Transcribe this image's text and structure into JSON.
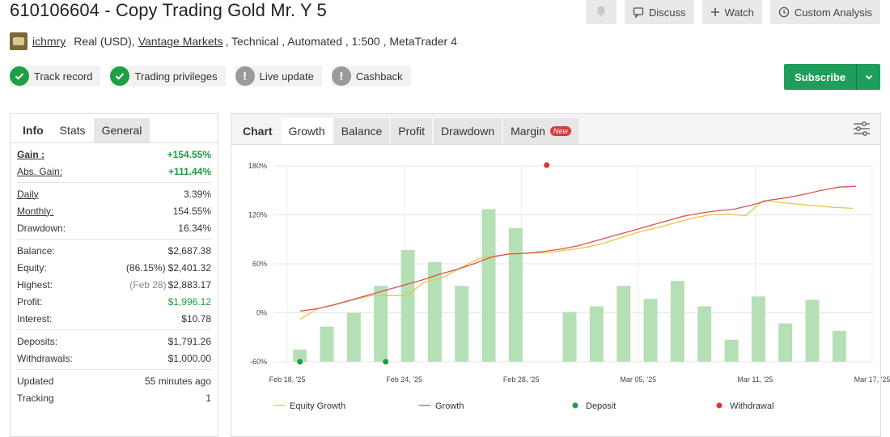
{
  "header": {
    "title": "610106604 - Copy Trading Gold Mr. Y 5",
    "discuss": "Discuss",
    "watch": "Watch",
    "custom_analysis": "Custom Analysis"
  },
  "account": {
    "user": "ichmry",
    "currency": "Real (USD),",
    "broker": "Vantage Markets",
    "details": ", Technical , Automated , 1:500 , MetaTrader 4"
  },
  "badges": {
    "track_record": "Track record",
    "trading_privileges": "Trading privileges",
    "live_update": "Live update",
    "cashback": "Cashback"
  },
  "subscribe": {
    "label": "Subscribe"
  },
  "left_tabs": {
    "info": "Info",
    "stats": "Stats",
    "general": "General"
  },
  "stats": {
    "gain_label": "Gain :",
    "gain": "+154.55%",
    "abs_gain_label": "Abs. Gain:",
    "abs_gain": "+111.44%",
    "daily_label": "Daily",
    "daily": "3.39%",
    "monthly_label": "Monthly:",
    "monthly": "154.55%",
    "drawdown_label": "Drawdown:",
    "drawdown": "16.34%",
    "balance_label": "Balance:",
    "balance": "$2,687.38",
    "equity_label": "Equity:",
    "equity_pct": "(86.15%)",
    "equity": "$2,401.32",
    "highest_label": "Highest:",
    "highest_date": "(Feb 28)",
    "highest": "$2,883.17",
    "profit_label": "Profit:",
    "profit": "$1,996.12",
    "interest_label": "Interest:",
    "interest": "$10.78",
    "deposits_label": "Deposits:",
    "deposits": "$1,791.26",
    "withdrawals_label": "Withdrawals:",
    "withdrawals": "$1,000.00",
    "updated_label": "Updated",
    "updated": "55 minutes ago",
    "tracking_label": "Tracking",
    "tracking": "1"
  },
  "chart_tabs": {
    "chart": "Chart",
    "growth": "Growth",
    "balance": "Balance",
    "profit": "Profit",
    "drawdown": "Drawdown",
    "margin": "Margin",
    "new": "New"
  },
  "colors": {
    "bar": "#b5e0b5",
    "growth": "#d9534f",
    "equity": "#e8c547",
    "deposit": "#1e9e45",
    "withdrawal": "#d9372f"
  },
  "chart_data": {
    "type": "bar",
    "ylim": [
      -60,
      180
    ],
    "yticks": [
      "180%",
      "120%",
      "60%",
      "0%",
      "-60%"
    ],
    "ytick_values": [
      180,
      120,
      60,
      0,
      -60
    ],
    "xticks": [
      "Feb 18, '25",
      "Feb 24, '25",
      "Feb 28, '25",
      "Mar 05, '25",
      "Mar 11, '25",
      "Mar 17, '25"
    ],
    "bar_values": [
      -45,
      -17,
      0,
      33,
      77,
      62,
      33,
      127,
      104,
      null,
      1,
      8,
      33,
      17,
      39,
      8,
      -33,
      20,
      -13,
      16,
      -22
    ],
    "growth": [
      2,
      5,
      10,
      16,
      22,
      28,
      34,
      40,
      47,
      53,
      60,
      68,
      72,
      73,
      75,
      78,
      82,
      88,
      94,
      100,
      106,
      112,
      118,
      122,
      125,
      127,
      132,
      138,
      141,
      145,
      150,
      154,
      155
    ],
    "equity_growth": [
      -8,
      5,
      10,
      16,
      21,
      21,
      21,
      38,
      43,
      55,
      66,
      70,
      72,
      73,
      74,
      77,
      80,
      85,
      92,
      99,
      104,
      110,
      116,
      120,
      121,
      119,
      138,
      135,
      133,
      131,
      129,
      128
    ],
    "deposit_markers": [
      0,
      3
    ],
    "withdrawal_markers": [
      9
    ],
    "legend": [
      "Equity Growth",
      "Growth",
      "Deposit",
      "Withdrawal"
    ]
  }
}
